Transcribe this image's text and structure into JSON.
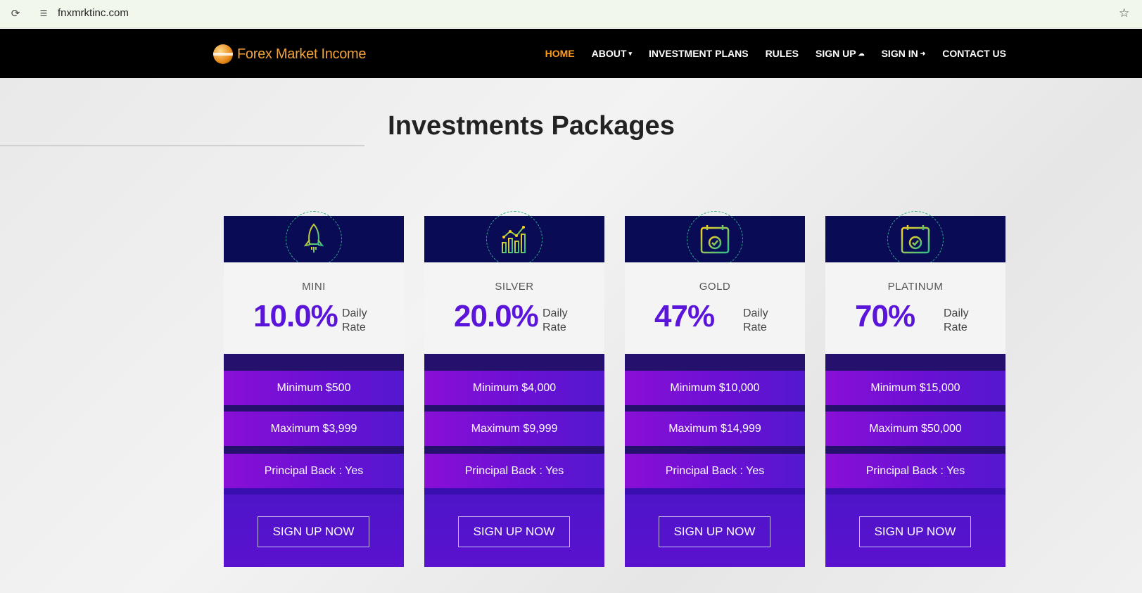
{
  "browser": {
    "url": "fnxmrktinc.com",
    "reload_icon": "reload-icon",
    "site_info_icon": "site-info-icon",
    "bookmark_icon": "star-icon"
  },
  "navbar": {
    "logo_text": "Forex Market Income",
    "items": [
      {
        "label": "HOME",
        "active": true
      },
      {
        "label": "ABOUT",
        "glyph": "⌄"
      },
      {
        "label": "INVESTMENT PLANS"
      },
      {
        "label": "RULES"
      },
      {
        "label": "SIGN UP",
        "glyph": "☁"
      },
      {
        "label": "SIGN IN",
        "glyph": "➜"
      },
      {
        "label": "CONTACT US"
      }
    ]
  },
  "section": {
    "title_light": "Investments",
    "title_bold": "Packages"
  },
  "plans": [
    {
      "name": "MINI",
      "rate": "10.0%",
      "daily": "Daily",
      "rate_word": "Rate",
      "minimum": "Minimum $500",
      "maximum": "Maximum $3,999",
      "principal": "Principal Back : Yes",
      "button": "SIGN UP NOW",
      "icon": "rocket-icon"
    },
    {
      "name": "SILVER",
      "rate": "20.0%",
      "daily": "Daily",
      "rate_word": "Rate",
      "minimum": "Minimum $4,000",
      "maximum": "Maximum $9,999",
      "principal": "Principal Back : Yes",
      "button": "SIGN UP NOW",
      "icon": "bar-chart-icon"
    },
    {
      "name": "GOLD",
      "rate": "47%",
      "daily": "Daily",
      "rate_word": "Rate",
      "minimum": "Minimum $10,000",
      "maximum": "Maximum $14,999",
      "principal": "Principal Back : Yes",
      "button": "SIGN UP NOW",
      "icon": "calendar-check-icon"
    },
    {
      "name": "PLATINUM",
      "rate": "70%",
      "daily": "Daily",
      "rate_word": "Rate",
      "minimum": "Minimum $15,000",
      "maximum": "Maximum $50,000",
      "principal": "Principal Back : Yes",
      "button": "SIGN UP NOW",
      "icon": "calendar-check-icon"
    }
  ],
  "colors": {
    "nav_active": "#ff9a1a",
    "card_head": "#0a0b55",
    "rate_text": "#5b14d9",
    "row_gradient_start": "#8a0fd6",
    "card_body": "#3a0fb0"
  }
}
